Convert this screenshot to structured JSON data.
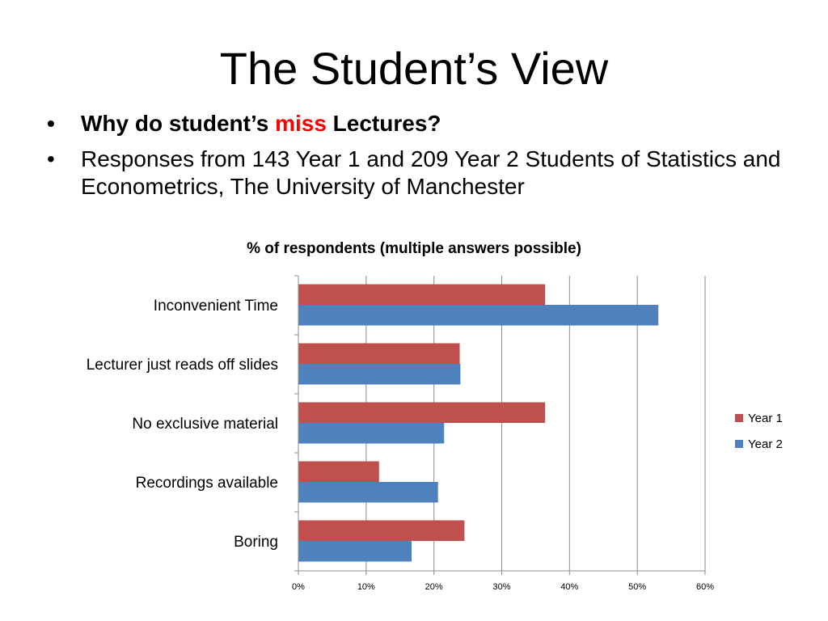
{
  "slide": {
    "title": "The Student’s View",
    "bullets": [
      {
        "prefix": "Why do student’s ",
        "highlight": "miss",
        "suffix": " Lectures?"
      },
      {
        "text": "Responses from 143 Year 1 and 209 Year 2 Students of Statistics and Econometrics, The University of Manchester"
      }
    ]
  },
  "chart_data": {
    "type": "bar",
    "orientation": "horizontal",
    "title": "% of respondents (multiple answers possible)",
    "xlabel": "",
    "ylabel": "",
    "categories": [
      "Inconvenient Time",
      "Lecturer just reads off slides",
      "No exclusive material",
      "Recordings available",
      "Boring"
    ],
    "series": [
      {
        "name": "Year 1",
        "color": "#c0504d",
        "values": [
          36.4,
          23.8,
          36.4,
          11.9,
          24.5
        ]
      },
      {
        "name": "Year 2",
        "color": "#4f81bd",
        "values": [
          53.1,
          23.9,
          21.5,
          20.6,
          16.7
        ]
      }
    ],
    "xlim": [
      0,
      60
    ],
    "xticks": [
      "0%",
      "10%",
      "20%",
      "30%",
      "40%",
      "50%",
      "60%"
    ],
    "xtick_values": [
      0,
      10,
      20,
      30,
      40,
      50,
      60
    ],
    "grid": true,
    "legend_position": "right"
  }
}
